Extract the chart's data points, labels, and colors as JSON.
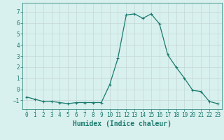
{
  "x": [
    0,
    1,
    2,
    3,
    4,
    5,
    6,
    7,
    8,
    9,
    10,
    11,
    12,
    13,
    14,
    15,
    16,
    17,
    18,
    19,
    20,
    21,
    22,
    23
  ],
  "y": [
    -0.7,
    -0.9,
    -1.1,
    -1.1,
    -1.2,
    -1.3,
    -1.2,
    -1.2,
    -1.2,
    -1.2,
    0.4,
    2.8,
    6.7,
    6.8,
    6.4,
    6.8,
    5.9,
    3.1,
    2.0,
    1.0,
    -0.1,
    -0.2,
    -1.1,
    -1.3
  ],
  "line_color": "#1a7a6e",
  "marker": "+",
  "marker_size": 3,
  "linewidth": 0.9,
  "xlabel": "Humidex (Indice chaleur)",
  "xlim": [
    -0.5,
    23.5
  ],
  "ylim": [
    -1.8,
    7.8
  ],
  "yticks": [
    -1,
    0,
    1,
    2,
    3,
    4,
    5,
    6,
    7
  ],
  "xticks": [
    0,
    1,
    2,
    3,
    4,
    5,
    6,
    7,
    8,
    9,
    10,
    11,
    12,
    13,
    14,
    15,
    16,
    17,
    18,
    19,
    20,
    21,
    22,
    23
  ],
  "bg_color": "#d8f0ee",
  "grid_color": "#c4d8d6",
  "tick_color": "#1a7a6e",
  "label_color": "#1a7a6e",
  "xlabel_fontsize": 7,
  "tick_fontsize": 5.5
}
